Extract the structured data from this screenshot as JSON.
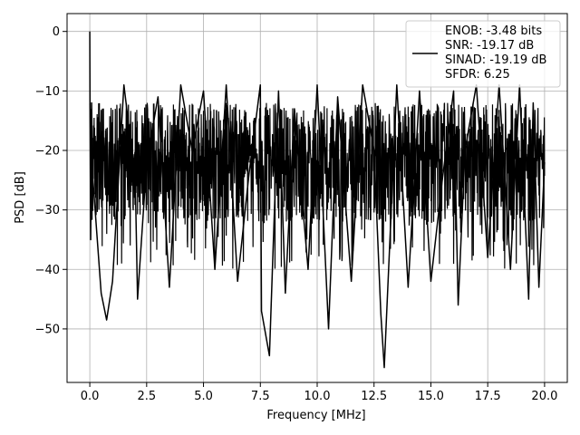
{
  "chart_data": {
    "type": "line",
    "title": "",
    "xlabel": "Frequency [MHz]",
    "ylabel": "PSD [dB]",
    "xlim": [
      -1.0,
      21.0
    ],
    "ylim": [
      -59.0,
      3.0
    ],
    "xticks": [
      0.0,
      2.5,
      5.0,
      7.5,
      10.0,
      12.5,
      15.0,
      17.5,
      20.0
    ],
    "xtick_labels": [
      "0.0",
      "2.5",
      "5.0",
      "7.5",
      "10.0",
      "12.5",
      "15.0",
      "17.5",
      "20.0"
    ],
    "yticks": [
      0,
      -10,
      -20,
      -30,
      -40,
      -50
    ],
    "ytick_labels": [
      "0",
      "−10",
      "−20",
      "−30",
      "−40",
      "−50"
    ],
    "grid": true,
    "legend_position": "top-right",
    "line_color": "#000000",
    "grid_color": "#b0b0b0",
    "series": [
      {
        "x": [
          0.0,
          0.01,
          0.04,
          0.08,
          0.12,
          0.5,
          0.74,
          1.0,
          1.5,
          2.0,
          2.1,
          2.5,
          3.0,
          3.5,
          4.0,
          4.5,
          5.0,
          5.5,
          6.0,
          6.5,
          7.0,
          7.5,
          7.55,
          7.9,
          8.3,
          8.6,
          9.0,
          9.6,
          10.0,
          10.5,
          10.9,
          11.5,
          12.0,
          12.5,
          12.8,
          12.95,
          13.5,
          14.0,
          14.5,
          15.0,
          15.5,
          16.0,
          16.2,
          16.5,
          17.0,
          17.5,
          18.0,
          18.5,
          18.9,
          19.3,
          19.5,
          19.75,
          20.0
        ],
        "y": [
          0.0,
          -14.0,
          -35.0,
          -12.0,
          -24.0,
          -44.0,
          -48.5,
          -42.0,
          -9.0,
          -25.0,
          -45.0,
          -22.0,
          -11.0,
          -43.0,
          -9.0,
          -20.0,
          -10.0,
          -40.0,
          -9.0,
          -42.0,
          -24.0,
          -9.0,
          -47.0,
          -54.5,
          -10.0,
          -44.0,
          -13.0,
          -40.0,
          -9.0,
          -50.0,
          -11.0,
          -42.0,
          -9.0,
          -20.0,
          -47.5,
          -56.5,
          -9.0,
          -43.0,
          -10.0,
          -42.0,
          -25.0,
          -10.0,
          -46.0,
          -20.0,
          -9.0,
          -38.0,
          -9.0,
          -40.0,
          -9.0,
          -45.0,
          -12.0,
          -43.0,
          -22.0
        ]
      }
    ],
    "legend_entries": [
      "ENOB: -3.48 bits",
      "SNR: -19.17 dB",
      "SINAD: -19.19 dB",
      "SFDR: 6.25"
    ]
  }
}
